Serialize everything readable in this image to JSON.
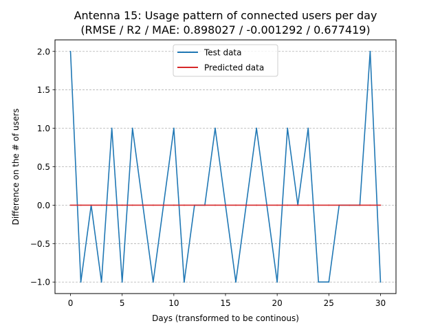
{
  "chart_data": {
    "type": "line",
    "title_line1": "Antenna 15: Usage pattern of connected users per day",
    "title_line2": "(RMSE / R2 / MAE: 0.898027 / -0.001292 / 0.677419)",
    "xlabel": "Days (transformed to be continous)",
    "ylabel": "Difference on the # of users",
    "xlim": [
      -1.5,
      31.5
    ],
    "ylim": [
      -1.15,
      2.15
    ],
    "xticks": [
      0,
      5,
      10,
      15,
      20,
      25,
      30
    ],
    "xtick_labels": [
      "0",
      "5",
      "10",
      "15",
      "20",
      "25",
      "30"
    ],
    "yticks": [
      -1.0,
      -0.5,
      0.0,
      0.5,
      1.0,
      1.5,
      2.0
    ],
    "ytick_labels": [
      "−1.0",
      "−0.5",
      "0.0",
      "0.5",
      "1.0",
      "1.5",
      "2.0"
    ],
    "grid": "y-dashed",
    "legend_position": "top-center",
    "series": [
      {
        "name": "Test data",
        "color": "#1f77b4",
        "x": [
          0,
          1,
          2,
          3,
          4,
          5,
          6,
          7,
          8,
          9,
          10,
          11,
          12,
          13,
          14,
          15,
          16,
          17,
          18,
          19,
          20,
          21,
          22,
          23,
          24,
          25,
          26,
          27,
          28,
          29,
          30
        ],
        "y": [
          2,
          -1,
          0,
          -1,
          1,
          -1,
          1,
          0,
          -1,
          0,
          1,
          -1,
          0,
          0,
          1,
          0,
          -1,
          0,
          1,
          0,
          -1,
          1,
          0,
          1,
          -1,
          -1,
          0,
          0,
          0,
          2,
          -1
        ]
      },
      {
        "name": "Predicted data",
        "color": "#d62728",
        "x": [
          0,
          1,
          2,
          3,
          4,
          5,
          6,
          7,
          8,
          9,
          10,
          11,
          12,
          13,
          14,
          15,
          16,
          17,
          18,
          19,
          20,
          21,
          22,
          23,
          24,
          25,
          26,
          27,
          28,
          29,
          30
        ],
        "y": [
          0,
          0,
          0,
          0,
          0,
          0,
          0,
          0,
          0,
          0,
          0,
          0,
          0,
          0,
          0,
          0,
          0,
          0,
          0,
          0,
          0,
          0,
          0,
          0,
          0,
          0,
          0,
          0,
          0,
          0,
          0
        ]
      }
    ]
  }
}
